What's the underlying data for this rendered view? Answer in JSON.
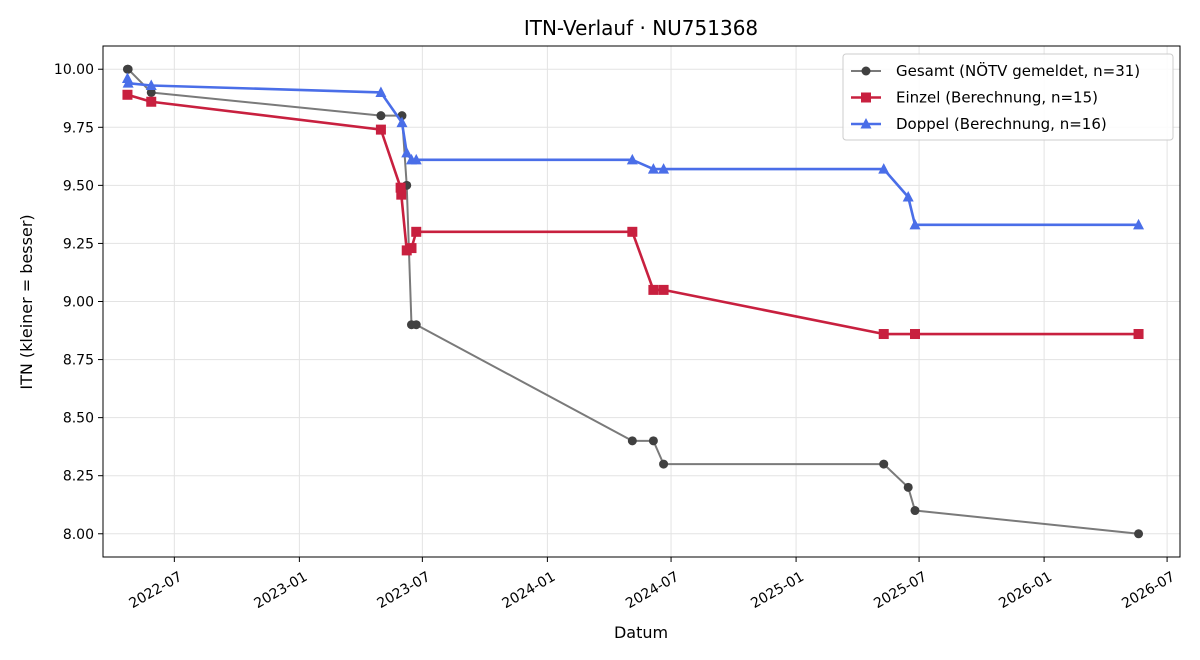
{
  "chart_data": {
    "type": "line",
    "title": "ITN-Verlauf · NU751368",
    "xlabel": "Datum",
    "ylabel": "ITN  (kleiner = besser)",
    "x_range": [
      "2022-03-18",
      "2026-07-20"
    ],
    "ylim": [
      7.9,
      10.1
    ],
    "x_ticks": [
      "2022-07",
      "2023-01",
      "2023-07",
      "2024-01",
      "2024-07",
      "2025-01",
      "2025-07",
      "2026-01",
      "2026-07"
    ],
    "y_ticks": [
      "8.00",
      "8.25",
      "8.50",
      "8.75",
      "9.00",
      "9.25",
      "9.50",
      "9.75",
      "10.00"
    ],
    "grid": true,
    "legend_position": "top-right",
    "series": [
      {
        "name": "Gesamt (NÖTV gemeldet, n=31)",
        "color": "#7a7a7a",
        "marker_color": "#404040",
        "marker": "circle",
        "points": [
          {
            "x": "2022-04-23",
            "y": 10.0
          },
          {
            "x": "2022-04-24",
            "y": 10.0
          },
          {
            "x": "2022-05-28",
            "y": 9.9
          },
          {
            "x": "2023-05-01",
            "y": 9.8
          },
          {
            "x": "2023-06-01",
            "y": 9.8
          },
          {
            "x": "2023-06-08",
            "y": 9.5
          },
          {
            "x": "2023-06-15",
            "y": 8.9
          },
          {
            "x": "2023-06-22",
            "y": 8.9
          },
          {
            "x": "2024-05-05",
            "y": 8.4
          },
          {
            "x": "2024-06-05",
            "y": 8.4
          },
          {
            "x": "2024-06-20",
            "y": 8.3
          },
          {
            "x": "2025-05-10",
            "y": 8.3
          },
          {
            "x": "2025-06-15",
            "y": 8.2
          },
          {
            "x": "2025-06-25",
            "y": 8.1
          },
          {
            "x": "2026-05-20",
            "y": 8.0
          }
        ]
      },
      {
        "name": "Einzel (Berechnung, n=15)",
        "color": "#c8203f",
        "marker_color": "#c8203f",
        "marker": "square",
        "points": [
          {
            "x": "2022-04-23",
            "y": 9.89
          },
          {
            "x": "2022-05-28",
            "y": 9.86
          },
          {
            "x": "2023-05-01",
            "y": 9.74
          },
          {
            "x": "2023-05-30",
            "y": 9.49
          },
          {
            "x": "2023-05-31",
            "y": 9.46
          },
          {
            "x": "2023-06-08",
            "y": 9.22
          },
          {
            "x": "2023-06-15",
            "y": 9.23
          },
          {
            "x": "2023-06-22",
            "y": 9.3
          },
          {
            "x": "2024-05-05",
            "y": 9.3
          },
          {
            "x": "2024-06-05",
            "y": 9.05
          },
          {
            "x": "2024-06-20",
            "y": 9.05
          },
          {
            "x": "2025-05-10",
            "y": 8.86
          },
          {
            "x": "2025-06-25",
            "y": 8.86
          },
          {
            "x": "2026-05-20",
            "y": 8.86
          }
        ]
      },
      {
        "name": "Doppel (Berechnung, n=16)",
        "color": "#4a6ee8",
        "marker_color": "#4a6ee8",
        "marker": "triangle",
        "points": [
          {
            "x": "2022-04-23",
            "y": 9.96
          },
          {
            "x": "2022-04-24",
            "y": 9.94
          },
          {
            "x": "2022-05-28",
            "y": 9.93
          },
          {
            "x": "2023-05-01",
            "y": 9.9
          },
          {
            "x": "2023-06-01",
            "y": 9.77
          },
          {
            "x": "2023-06-08",
            "y": 9.64
          },
          {
            "x": "2023-06-15",
            "y": 9.61
          },
          {
            "x": "2023-06-22",
            "y": 9.61
          },
          {
            "x": "2024-05-05",
            "y": 9.61
          },
          {
            "x": "2024-06-05",
            "y": 9.57
          },
          {
            "x": "2024-06-20",
            "y": 9.57
          },
          {
            "x": "2025-05-10",
            "y": 9.57
          },
          {
            "x": "2025-06-15",
            "y": 9.45
          },
          {
            "x": "2025-06-25",
            "y": 9.33
          },
          {
            "x": "2026-05-20",
            "y": 9.33
          }
        ]
      }
    ]
  }
}
